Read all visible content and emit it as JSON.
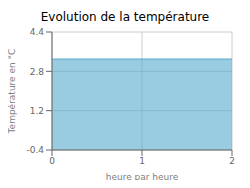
{
  "chart_data": {
    "type": "area",
    "title": "Evolution de la température",
    "x_label": "heure par heure",
    "y_label": "Température en °C",
    "x": [
      0,
      2
    ],
    "series": [
      {
        "name": "température",
        "color": "#55aacc",
        "values": [
          3.3,
          3.3
        ]
      }
    ],
    "xlim": [
      0,
      2
    ],
    "ylim": [
      -0.4,
      4.4
    ],
    "xticks": [
      0,
      1,
      2
    ],
    "yticks": [
      -0.4,
      1.2,
      2.8,
      4.4
    ],
    "grid": true
  }
}
